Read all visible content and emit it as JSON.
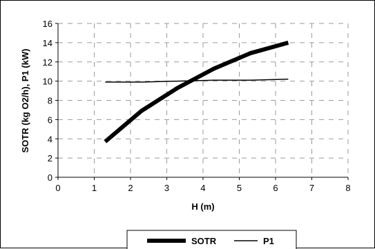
{
  "chart_data": {
    "type": "line",
    "title": "",
    "xlabel": "H (m)",
    "ylabel": "SOTR (kg O2/h), P1 (kW)",
    "xlim": [
      0,
      8
    ],
    "ylim": [
      0,
      16
    ],
    "x_ticks": [
      "0",
      "1",
      "2",
      "3",
      "4",
      "5",
      "6",
      "7",
      "8"
    ],
    "y_ticks": [
      "0",
      "2",
      "4",
      "6",
      "8",
      "10",
      "12",
      "14",
      "16"
    ],
    "grid": "dashed",
    "legend_position": "bottom",
    "series": [
      {
        "name": "SOTR",
        "color": "#000000",
        "style": "thick",
        "points": [
          [
            1.3,
            3.7
          ],
          [
            2.3,
            6.9
          ],
          [
            3.3,
            9.3
          ],
          [
            4.3,
            11.3
          ],
          [
            5.3,
            12.9
          ],
          [
            6.35,
            14.0
          ]
        ]
      },
      {
        "name": "P1",
        "color": "#000000",
        "style": "thin",
        "points": [
          [
            1.3,
            9.9
          ],
          [
            2.3,
            9.9
          ],
          [
            3.3,
            10.0
          ],
          [
            4.3,
            10.1
          ],
          [
            5.3,
            10.1
          ],
          [
            6.35,
            10.2
          ]
        ]
      }
    ]
  }
}
